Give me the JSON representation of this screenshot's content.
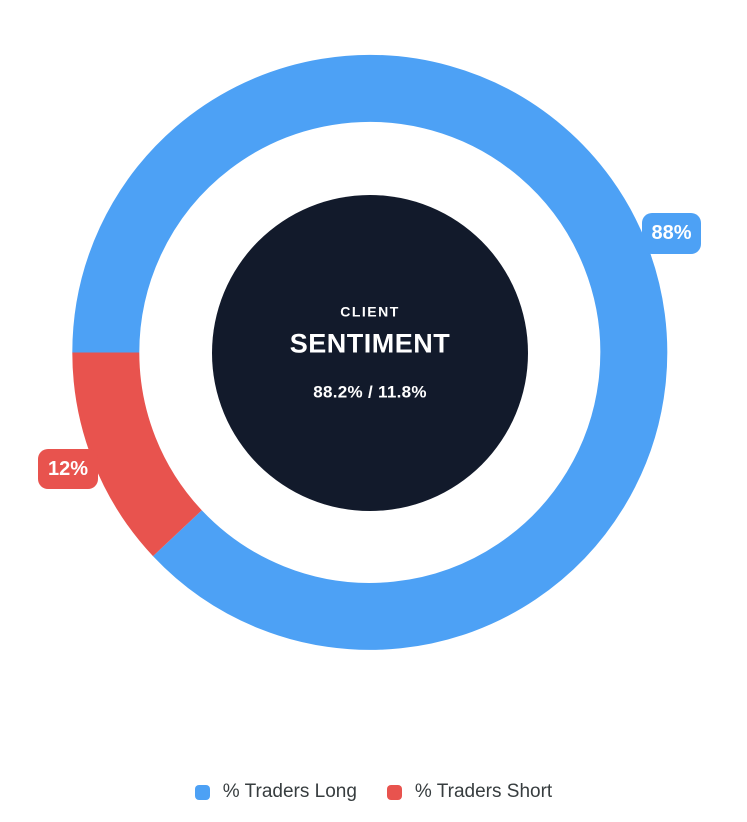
{
  "chart_data": {
    "type": "pie",
    "variant": "donut",
    "title": "CLIENT SENTIMENT",
    "series": [
      {
        "name": "% Traders Long",
        "value": 88,
        "exact_pct": 88.2,
        "color": "#4DA1F5",
        "data_label": "88%"
      },
      {
        "name": "% Traders Short",
        "value": 12,
        "exact_pct": 11.8,
        "color": "#E8534E",
        "data_label": "12%"
      }
    ],
    "start_angle_deg": 270,
    "direction": "clockwise",
    "legend_position": "bottom",
    "center_text": [
      "CLIENT",
      "SENTIMENT",
      "88.2% / 11.8%"
    ]
  },
  "center": {
    "eyebrow": "CLIENT",
    "title": "SENTIMENT",
    "values": "88.2% / 11.8%",
    "bg_color": "#121A2B",
    "text_color": "#FFFFFF"
  }
}
